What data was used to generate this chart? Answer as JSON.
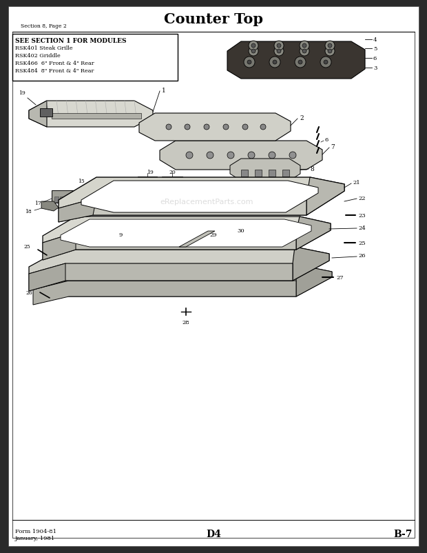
{
  "title": "Counter Top",
  "section_label": "Section 8, Page 2",
  "box_header": "SEE SECTION 1 FOR MODULES",
  "box_lines": [
    "RSK401 Steak Grille",
    "RSK402 Griddle",
    "RSK466  6\" Front & 4\" Rear",
    "RSK484  8\" Front & 4\" Rear"
  ],
  "footer_left_line1": "Form 1904-81",
  "footer_left_line2": "January, 1981",
  "footer_center": "D4",
  "footer_right": "B-7",
  "watermark": "eReplacementParts.com",
  "bg_color": "#ffffff",
  "page_bg": "#e8e8e0",
  "figsize": [
    6.2,
    8.03
  ],
  "dpi": 100
}
